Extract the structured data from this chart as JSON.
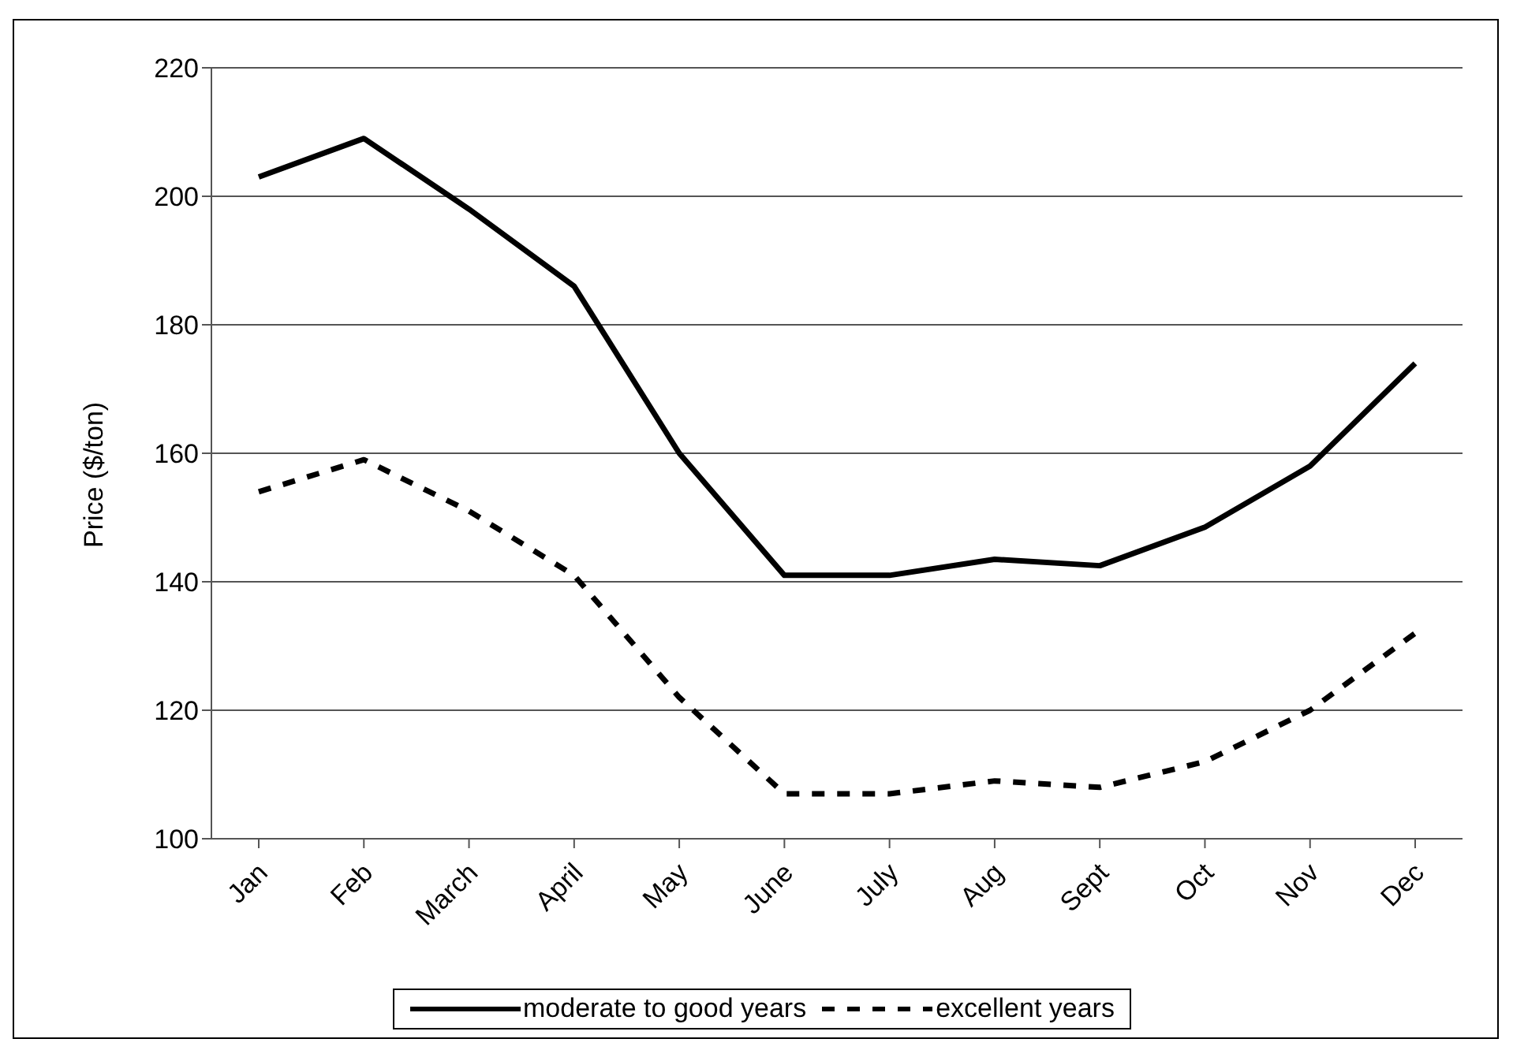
{
  "chart_data": {
    "type": "line",
    "ylabel": "Price ($/ton)",
    "categories": [
      "Jan",
      "Feb",
      "March",
      "April",
      "May",
      "June",
      "July",
      "Aug",
      "Sept",
      "Oct",
      "Nov",
      "Dec"
    ],
    "series": [
      {
        "name": "moderate to good years",
        "color": "#000000",
        "line_style": "solid",
        "values": [
          203,
          209,
          198,
          186,
          160,
          141,
          141,
          143.5,
          142.5,
          148.5,
          158,
          174
        ]
      },
      {
        "name": "excellent years",
        "color": "#000000",
        "line_style": "dashed",
        "values": [
          154,
          159,
          151,
          141,
          122,
          107,
          107,
          109,
          108,
          112,
          120,
          132
        ]
      }
    ],
    "ylim": [
      100,
      220
    ],
    "yticks": [
      100,
      120,
      140,
      160,
      180,
      200,
      220
    ],
    "grid": "y",
    "legend": "bottom",
    "marker": "none"
  }
}
